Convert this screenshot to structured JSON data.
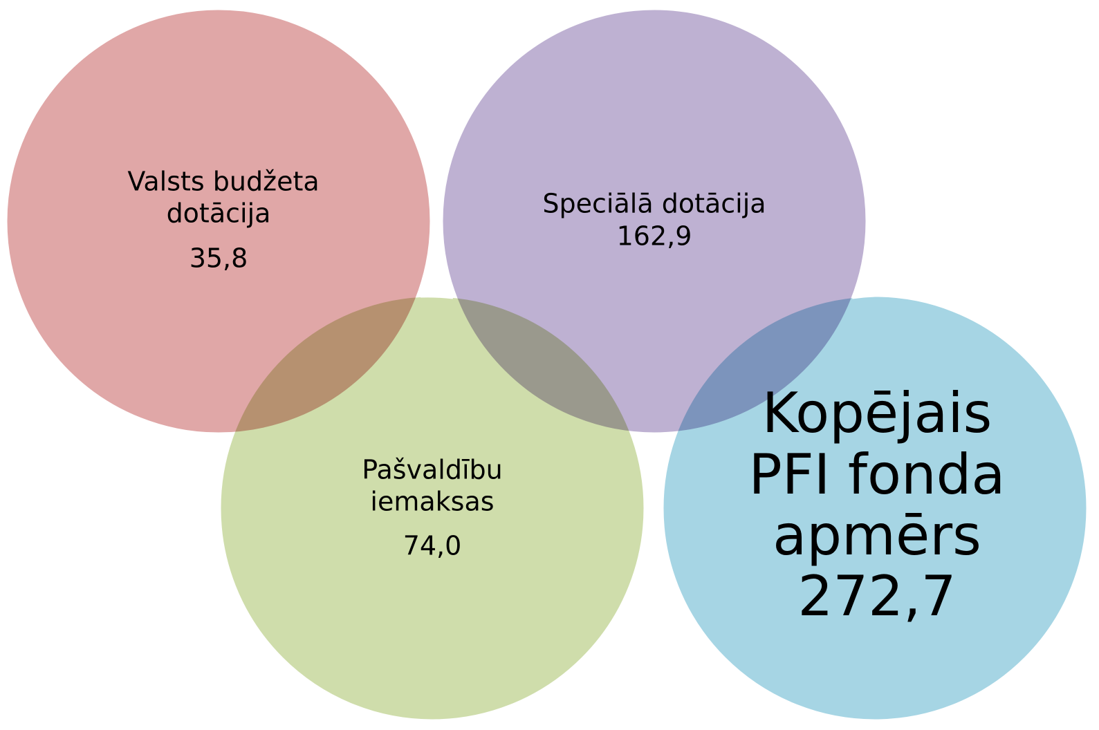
{
  "nodes": [
    {
      "label": [
        "Valsts budžeta",
        "dotācija"
      ],
      "value": "35,8"
    },
    {
      "label": [
        "Speciālā dotācija"
      ],
      "value": "162,9"
    },
    {
      "label": [
        "Pašvaldību",
        "iemaksas"
      ],
      "value": "74,0"
    },
    {
      "label": [
        "Kopējais",
        "PFI fonda",
        "apmērs"
      ],
      "value": "272,7"
    }
  ]
}
